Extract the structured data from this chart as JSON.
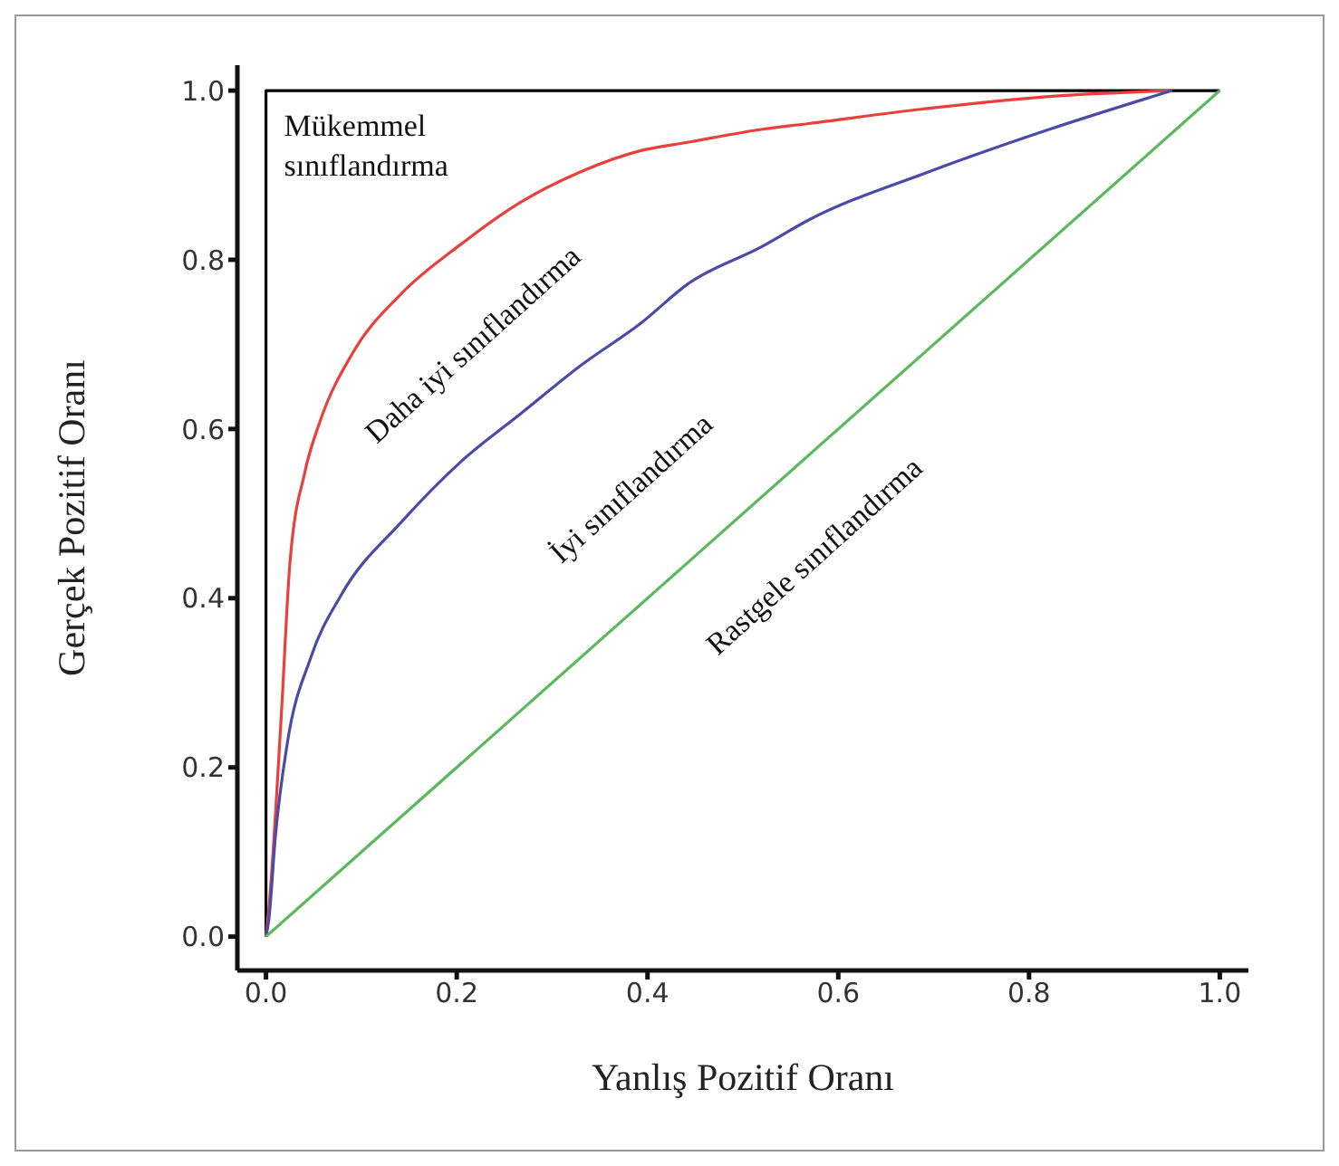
{
  "chart_data": {
    "type": "line",
    "xlabel": "Yanlış Pozitif Oranı",
    "ylabel": "Gerçek Pozitif Oranı",
    "xlim": [
      -0.03,
      1.03
    ],
    "ylim": [
      -0.04,
      1.03
    ],
    "xticks": [
      {
        "value": 0,
        "label": "0.0"
      },
      0.2,
      0.4,
      0.6,
      0.8,
      {
        "value": 1,
        "label": "1.0"
      }
    ],
    "yticks": [
      {
        "value": 0,
        "label": "0.0"
      },
      0.2,
      0.4,
      0.6,
      0.8,
      {
        "value": 1,
        "label": "1.0"
      }
    ],
    "grid": false,
    "marker": "none",
    "line_style": "solid",
    "series": [
      {
        "color": "#000000",
        "x": [
          0,
          0,
          1
        ],
        "values": [
          0,
          1,
          1
        ]
      },
      {
        "color": "#e8413c",
        "x": [
          0,
          0.003,
          0.016,
          0.025,
          0.041,
          0.057,
          0.091,
          0.142,
          0.204,
          0.267,
          0.33,
          0.393,
          0.443,
          0.519,
          0.569,
          0.695,
          0.821,
          0.95
        ],
        "values": [
          0,
          0.033,
          0.26,
          0.44,
          0.55,
          0.61,
          0.69,
          0.76,
          0.818,
          0.868,
          0.904,
          0.929,
          0.939,
          0.954,
          0.961,
          0.979,
          0.993,
          1.0
        ]
      },
      {
        "color": "#4a4aa8",
        "x": [
          0,
          0.003,
          0.01,
          0.022,
          0.047,
          0.079,
          0.142,
          0.204,
          0.267,
          0.33,
          0.393,
          0.443,
          0.519,
          0.569,
          0.695,
          0.821,
          0.95
        ],
        "values": [
          0,
          0.02,
          0.12,
          0.226,
          0.33,
          0.404,
          0.49,
          0.561,
          0.618,
          0.675,
          0.725,
          0.772,
          0.815,
          0.847,
          0.904,
          0.954,
          1.0
        ]
      },
      {
        "color": "#5cb85c",
        "x": [
          0,
          1
        ],
        "values": [
          0,
          1
        ]
      }
    ],
    "annotations": [
      "Mükemmel sınıflandırma",
      "Daha iyi sınıflandırma",
      "İyi sınıflandırma",
      "Rastgele sınıflandırma"
    ]
  }
}
